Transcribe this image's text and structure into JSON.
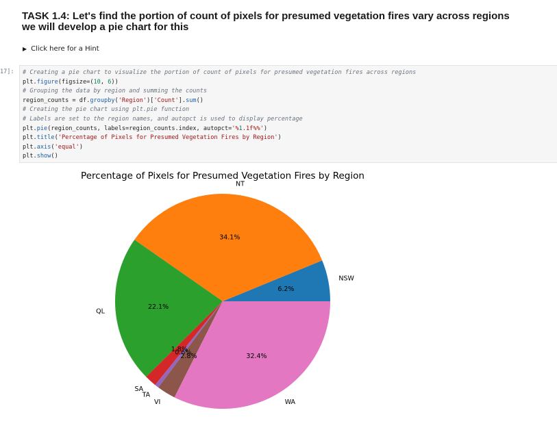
{
  "task": {
    "line1": "TASK 1.4: Let's find the portion of count of pixels for presumed vegetation fires vary across regions",
    "line2": "we will develop a pie chart for this"
  },
  "hint": {
    "label": "Click here for a Hint",
    "icon": "triangle-right-icon"
  },
  "cell": {
    "prompt": "17]:",
    "lines": [
      "# Creating a pie chart to visualize the portion of count of pixels for presumed vegetation fires across regions",
      "plt.figure(figsize=(10, 6))",
      "# Grouping the data by region and summing the counts",
      "region_counts = df.groupby('Region')['Count'].sum()",
      "# Creating the pie chart using plt.pie function",
      "# Labels are set to the region names, and autopct is used to display percentage",
      "plt.pie(region_counts, labels=region_counts.index, autopct='%1.1f%%')",
      "plt.title('Percentage of Pixels for Presumed Vegetation Fires by Region')",
      "plt.axis('equal')",
      "plt.show()"
    ]
  },
  "chart_data": {
    "type": "pie",
    "title": "Percentage of Pixels for Presumed Vegetation Fires by Region",
    "start_angle": 0,
    "direction": "counterclockwise",
    "slices": [
      {
        "label": "NSW",
        "value": 6.2,
        "pct": "6.2%",
        "color": "#1f77b4"
      },
      {
        "label": "NT",
        "value": 34.1,
        "pct": "34.1%",
        "color": "#ff7f0e"
      },
      {
        "label": "QL",
        "value": 22.1,
        "pct": "22.1%",
        "color": "#2ca02c"
      },
      {
        "label": "SA",
        "value": 1.8,
        "pct": "1.8%",
        "color": "#d62728"
      },
      {
        "label": "TA",
        "value": 0.6,
        "pct": "0.6%",
        "color": "#9467bd"
      },
      {
        "label": "VI",
        "value": 2.8,
        "pct": "2.8%",
        "color": "#8c564b"
      },
      {
        "label": "WA",
        "value": 32.4,
        "pct": "32.4%",
        "color": "#e377c2"
      }
    ]
  }
}
